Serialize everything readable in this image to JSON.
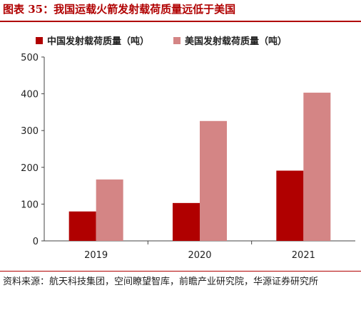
{
  "figure": {
    "title": "图表 35：我国运载火箭发射载荷质量远低于美国",
    "source": "资料来源：航天科技集团，空间瞭望智库，前瞻产业研究院，华源证券研究所"
  },
  "colors": {
    "china": "#b00000",
    "usa": "#d48585",
    "accent": "#b00000"
  },
  "chart_data": {
    "type": "bar",
    "categories": [
      "2019",
      "2020",
      "2021"
    ],
    "series": [
      {
        "name": "中国发射载荷质量（吨）",
        "values": [
          80,
          103,
          191
        ]
      },
      {
        "name": "美国发射载荷质量（吨）",
        "values": [
          167,
          326,
          403
        ]
      }
    ],
    "ylim": [
      0,
      500
    ],
    "yticks": [
      "0",
      "100",
      "200",
      "300",
      "400",
      "500"
    ],
    "grid": false,
    "legend_position": "top"
  }
}
